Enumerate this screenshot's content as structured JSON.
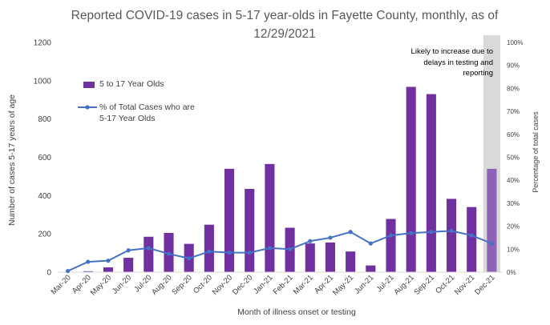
{
  "chart_data": {
    "type": "bar",
    "title": "Reported COVID-19 cases in 5-17 year-olds in Fayette County, monthly, as of 12/29/2021",
    "xlabel": "Month of illness onset or testing",
    "ylabel": "Number of cases 5-17 years of age",
    "y2label": "Percentage of total cases",
    "categories": [
      "Mar-20",
      "Apr-20",
      "May-20",
      "Jun-20",
      "Jul-20",
      "Aug-20",
      "Sep-20",
      "Oct-20",
      "Nov-20",
      "Dec-20",
      "Jan-21",
      "Feb-21",
      "Mar-21",
      "Apr-21",
      "May-21",
      "Jun-21",
      "Jul-21",
      "Aug-21",
      "Sep-21",
      "Oct-21",
      "Nov-21",
      "Dec-21"
    ],
    "ylim": [
      0,
      1200
    ],
    "yticks": [
      "0",
      "200",
      "400",
      "600",
      "800",
      "1000",
      "1200"
    ],
    "y2lim": [
      0,
      100
    ],
    "y2ticks": [
      "0%",
      "10%",
      "20%",
      "30%",
      "40%",
      "50%",
      "60%",
      "70%",
      "80%",
      "90%",
      "100%"
    ],
    "series": [
      {
        "name": "5 to 17 Year Olds",
        "kind": "bar",
        "color": "#7030A0",
        "values": [
          2,
          5,
          25,
          75,
          185,
          205,
          148,
          248,
          540,
          435,
          565,
          232,
          150,
          155,
          108,
          35,
          278,
          968,
          930,
          383,
          340,
          540
        ]
      },
      {
        "name": "% of Total Cases who are 5-17 Year Olds",
        "kind": "line",
        "axis": "right",
        "color": "#4472C4",
        "values": [
          0.5,
          4.5,
          5,
          9.5,
          10.5,
          8,
          6,
          9,
          8.5,
          8.5,
          10.5,
          10,
          13.5,
          15,
          17.5,
          12.5,
          16,
          17,
          17.5,
          18,
          16,
          12.5
        ]
      }
    ],
    "highlight": {
      "category": "Dec-21",
      "color": "#D9D9D9",
      "bar_color": "#8E62B5",
      "annotation": "Likely to increase due to delays in testing and reporting"
    },
    "legend": "upper-left",
    "grid": false
  }
}
